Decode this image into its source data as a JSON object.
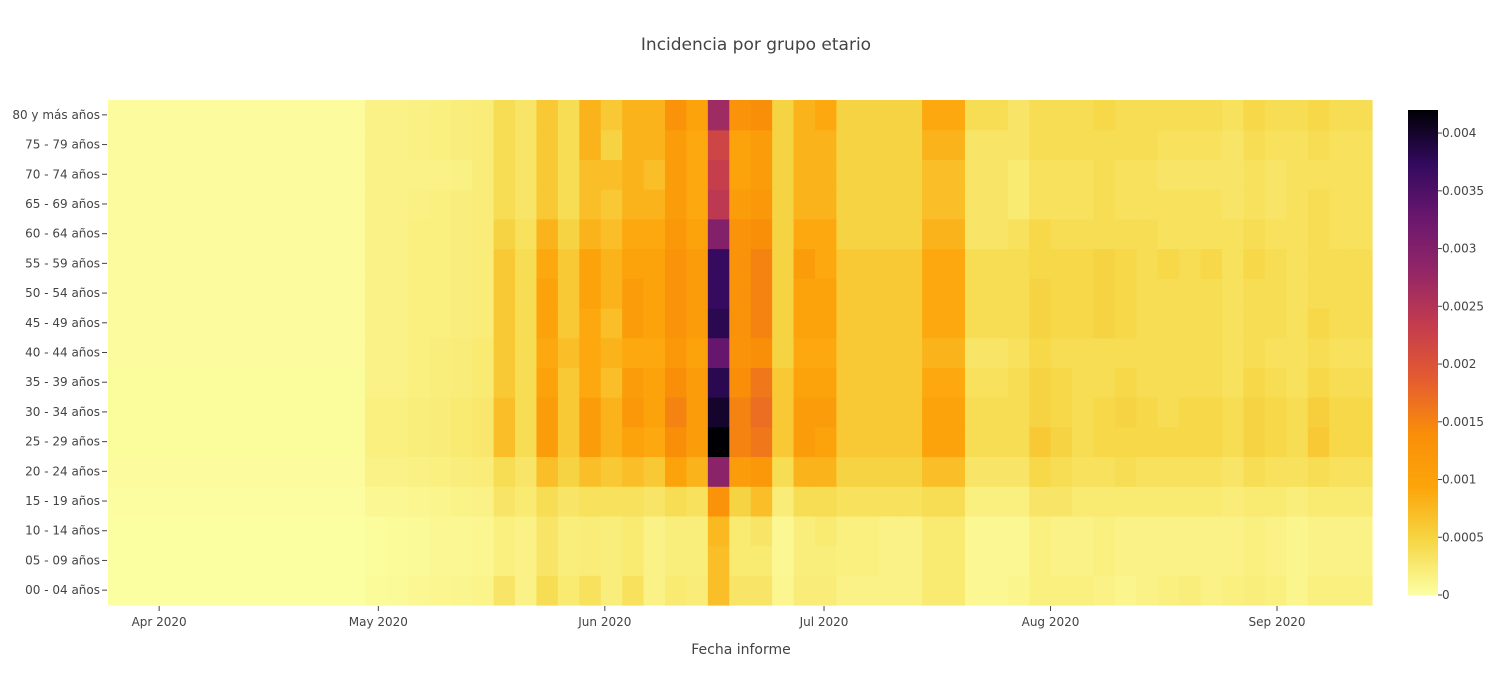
{
  "chart_data": {
    "type": "heatmap",
    "title": "Incidencia por grupo etario",
    "xlabel": "Fecha informe",
    "ylabel": "",
    "x_start": "2020-03-25",
    "x_end": "2020-09-14",
    "x_step_days": 3.5,
    "x_ticks": [
      {
        "date": "2020-04-01",
        "label": "Apr 2020"
      },
      {
        "date": "2020-05-01",
        "label": "May 2020"
      },
      {
        "date": "2020-06-01",
        "label": "Jun 2020"
      },
      {
        "date": "2020-07-01",
        "label": "Jul 2020"
      },
      {
        "date": "2020-08-01",
        "label": "Aug 2020"
      },
      {
        "date": "2020-09-01",
        "label": "Sep 2020"
      }
    ],
    "y_categories": [
      "00 - 04 años",
      "05 - 09 años",
      "10 - 14 años",
      "15 - 19 años",
      "20 - 24 años",
      "25 - 29 años",
      "30 - 34 años",
      "35 - 39 años",
      "40 - 44 años",
      "45 - 49 años",
      "50 - 54 años",
      "55 - 59 años",
      "60 - 64 años",
      "65 - 69 años",
      "70 - 74 años",
      "75 - 79 años",
      "80 y más años"
    ],
    "colorscale": "inferno-reversed",
    "zmin": 0,
    "zmax": 0.0042,
    "colorbar_ticks": [
      {
        "value": 0,
        "label": "0"
      },
      {
        "value": 0.0005,
        "label": "0.0005"
      },
      {
        "value": 0.001,
        "label": "0.001"
      },
      {
        "value": 0.0015,
        "label": "0.0015"
      },
      {
        "value": 0.002,
        "label": "0.002"
      },
      {
        "value": 0.0025,
        "label": "0.0025"
      },
      {
        "value": 0.003,
        "label": "0.003"
      },
      {
        "value": 0.0035,
        "label": "0.0035"
      },
      {
        "value": 0.004,
        "label": "0.004"
      }
    ],
    "z": [
      [
        1e-05,
        1e-05,
        1e-05,
        1e-05,
        1e-05,
        1e-05,
        1e-05,
        1e-05,
        1e-05,
        1e-05,
        1e-05,
        1e-05,
        5e-05,
        6e-05,
        8e-05,
        0.0001,
        0.00012,
        0.00013,
        0.0003,
        0.00015,
        0.0004,
        0.00025,
        0.00035,
        0.0002,
        0.00035,
        0.00015,
        0.00025,
        0.00022,
        0.0007,
        0.0003,
        0.0003,
        0.0001,
        0.00022,
        0.00022,
        0.00015,
        0.00015,
        0.00015,
        0.00015,
        0.00025,
        0.00025,
        8e-05,
        8e-05,
        0.00012,
        0.00018,
        0.00018,
        0.00018,
        0.00015,
        0.00012,
        0.00015,
        0.00018,
        0.0002,
        0.00015,
        0.00018,
        0.0002,
        0.00018,
        0.00012,
        0.00018,
        0.00018,
        0.00018
      ],
      [
        1e-05,
        1e-05,
        1e-05,
        1e-05,
        1e-05,
        1e-05,
        1e-05,
        1e-05,
        1e-05,
        1e-05,
        1e-05,
        1e-05,
        4e-05,
        5e-05,
        6e-05,
        8e-05,
        9e-05,
        0.0001,
        0.00018,
        0.00015,
        0.0003,
        0.0002,
        0.00022,
        0.0002,
        0.00025,
        0.00015,
        0.0002,
        0.0002,
        0.0007,
        0.00025,
        0.00025,
        8e-05,
        0.0002,
        0.0002,
        0.00018,
        0.00018,
        0.00015,
        0.00015,
        0.00025,
        0.00025,
        8e-05,
        8e-05,
        8e-05,
        0.00018,
        0.00015,
        0.00015,
        0.00018,
        0.00015,
        0.00015,
        0.00015,
        0.00015,
        0.00015,
        0.00015,
        0.00018,
        0.00015,
        0.00012,
        0.00015,
        0.00015,
        0.00015
      ],
      [
        1e-05,
        1e-05,
        1e-05,
        1e-05,
        1e-05,
        1e-05,
        1e-05,
        1e-05,
        1e-05,
        1e-05,
        1e-05,
        1e-05,
        4e-05,
        5e-05,
        6e-05,
        8e-05,
        9e-05,
        0.0001,
        0.00018,
        0.00015,
        0.0003,
        0.0002,
        0.00022,
        0.0002,
        0.00025,
        0.00015,
        0.0002,
        0.0002,
        0.00075,
        0.00025,
        0.0003,
        8e-05,
        0.0002,
        0.00025,
        0.00018,
        0.00018,
        0.00015,
        0.00015,
        0.00025,
        0.00025,
        8e-05,
        8e-05,
        8e-05,
        0.00018,
        0.00015,
        0.00015,
        0.00018,
        0.00015,
        0.00015,
        0.00015,
        0.00015,
        0.00015,
        0.00015,
        0.00018,
        0.00015,
        0.00012,
        0.00015,
        0.00015,
        0.00015
      ],
      [
        2e-05,
        2e-05,
        2e-05,
        2e-05,
        2e-05,
        2e-05,
        2e-05,
        2e-05,
        2e-05,
        2e-05,
        2e-05,
        2e-05,
        8e-05,
        9e-05,
        0.0001,
        0.00012,
        0.00014,
        0.00015,
        0.0003,
        0.00025,
        0.0004,
        0.0003,
        0.00035,
        0.00035,
        0.00035,
        0.0003,
        0.0004,
        0.00035,
        0.0013,
        0.0005,
        0.0007,
        0.00022,
        0.0004,
        0.0004,
        0.00035,
        0.00035,
        0.00035,
        0.00035,
        0.0004,
        0.0004,
        0.00018,
        0.00018,
        0.00018,
        0.0003,
        0.0003,
        0.00025,
        0.00025,
        0.00025,
        0.00025,
        0.00025,
        0.00025,
        0.00025,
        0.00022,
        0.00025,
        0.00025,
        0.0002,
        0.00025,
        0.00025,
        0.00025
      ],
      [
        3e-05,
        3e-05,
        3e-05,
        3e-05,
        3e-05,
        3e-05,
        3e-05,
        3e-05,
        3e-05,
        3e-05,
        3e-05,
        3e-05,
        0.00015,
        0.00015,
        0.00016,
        0.00018,
        0.0002,
        0.00022,
        0.0004,
        0.0003,
        0.0007,
        0.0005,
        0.0007,
        0.0006,
        0.0007,
        0.0006,
        0.001,
        0.0008,
        0.0029,
        0.0011,
        0.0012,
        0.0004,
        0.0008,
        0.0008,
        0.0005,
        0.0005,
        0.0005,
        0.0005,
        0.0007,
        0.0007,
        0.0003,
        0.0003,
        0.0003,
        0.00045,
        0.0004,
        0.00035,
        0.00035,
        0.0004,
        0.00035,
        0.00035,
        0.00035,
        0.00035,
        0.0003,
        0.0004,
        0.00035,
        0.00035,
        0.0004,
        0.00035,
        0.00035
      ],
      [
        4e-05,
        4e-05,
        4e-05,
        4e-05,
        4e-05,
        4e-05,
        4e-05,
        4e-05,
        4e-05,
        4e-05,
        4e-05,
        4e-05,
        0.00018,
        0.00018,
        0.0002,
        0.00022,
        0.00025,
        0.00028,
        0.0007,
        0.0004,
        0.0011,
        0.0006,
        0.0011,
        0.0008,
        0.001,
        0.0009,
        0.0014,
        0.0011,
        0.0042,
        0.0015,
        0.0016,
        0.0006,
        0.0011,
        0.001,
        0.0006,
        0.0006,
        0.0006,
        0.0006,
        0.001,
        0.001,
        0.0004,
        0.0004,
        0.0004,
        0.0006,
        0.0005,
        0.0004,
        0.00045,
        0.00045,
        0.00045,
        0.00045,
        0.00045,
        0.00045,
        0.0004,
        0.0005,
        0.00045,
        0.0004,
        0.0006,
        0.00045,
        0.00045
      ],
      [
        4e-05,
        4e-05,
        4e-05,
        4e-05,
        4e-05,
        4e-05,
        4e-05,
        4e-05,
        4e-05,
        4e-05,
        4e-05,
        4e-05,
        0.00018,
        0.00018,
        0.0002,
        0.00022,
        0.00025,
        0.00028,
        0.0007,
        0.0004,
        0.0011,
        0.0006,
        0.0011,
        0.0008,
        0.0012,
        0.001,
        0.0015,
        0.0011,
        0.004,
        0.0015,
        0.0017,
        0.0006,
        0.0011,
        0.0011,
        0.0006,
        0.0006,
        0.0006,
        0.0006,
        0.001,
        0.001,
        0.0004,
        0.0004,
        0.0004,
        0.0005,
        0.00045,
        0.0004,
        0.00045,
        0.0005,
        0.00045,
        0.0004,
        0.00045,
        0.00045,
        0.0004,
        0.0005,
        0.00045,
        0.0004,
        0.00055,
        0.00045,
        0.00045
      ],
      [
        4e-05,
        4e-05,
        4e-05,
        4e-05,
        4e-05,
        4e-05,
        4e-05,
        4e-05,
        4e-05,
        4e-05,
        4e-05,
        4e-05,
        0.00015,
        0.00015,
        0.00018,
        0.0002,
        0.00022,
        0.00025,
        0.0006,
        0.0004,
        0.001,
        0.0006,
        0.0009,
        0.0007,
        0.0011,
        0.001,
        0.0014,
        0.0011,
        0.0038,
        0.0014,
        0.0016,
        0.0006,
        0.001,
        0.001,
        0.0006,
        0.0006,
        0.0006,
        0.0006,
        0.0009,
        0.0009,
        0.00035,
        0.00035,
        0.0004,
        0.0005,
        0.00045,
        0.0004,
        0.0004,
        0.00045,
        0.0004,
        0.0004,
        0.0004,
        0.0004,
        0.00035,
        0.00045,
        0.0004,
        0.00035,
        0.00045,
        0.0004,
        0.0004
      ],
      [
        3e-05,
        3e-05,
        3e-05,
        3e-05,
        3e-05,
        3e-05,
        3e-05,
        3e-05,
        3e-05,
        3e-05,
        3e-05,
        3e-05,
        0.00015,
        0.00015,
        0.00018,
        0.0002,
        0.00022,
        0.00025,
        0.0006,
        0.0004,
        0.0009,
        0.0007,
        0.0009,
        0.0008,
        0.0009,
        0.0009,
        0.0012,
        0.001,
        0.0033,
        0.0013,
        0.0014,
        0.0005,
        0.0009,
        0.0009,
        0.0006,
        0.0006,
        0.0006,
        0.0006,
        0.0008,
        0.0008,
        0.0003,
        0.0003,
        0.00035,
        0.00045,
        0.0004,
        0.0004,
        0.0004,
        0.0004,
        0.0004,
        0.0004,
        0.0004,
        0.0004,
        0.00035,
        0.0004,
        0.00035,
        0.00035,
        0.0004,
        0.00035,
        0.00035
      ],
      [
        3e-05,
        3e-05,
        3e-05,
        3e-05,
        3e-05,
        3e-05,
        3e-05,
        3e-05,
        3e-05,
        3e-05,
        3e-05,
        3e-05,
        0.00015,
        0.00015,
        0.00018,
        0.00018,
        0.0002,
        0.00022,
        0.0006,
        0.0004,
        0.001,
        0.0006,
        0.0009,
        0.0007,
        0.0011,
        0.001,
        0.0013,
        0.0011,
        0.0038,
        0.0013,
        0.0015,
        0.0005,
        0.001,
        0.001,
        0.0006,
        0.0006,
        0.0006,
        0.0006,
        0.0009,
        0.0009,
        0.0004,
        0.0004,
        0.0004,
        0.0005,
        0.00045,
        0.00045,
        0.0005,
        0.00045,
        0.0004,
        0.0004,
        0.0004,
        0.0004,
        0.00035,
        0.0004,
        0.0004,
        0.00035,
        0.00045,
        0.0004,
        0.0004
      ],
      [
        3e-05,
        3e-05,
        3e-05,
        3e-05,
        3e-05,
        3e-05,
        3e-05,
        3e-05,
        3e-05,
        3e-05,
        3e-05,
        3e-05,
        0.00015,
        0.00015,
        0.00018,
        0.00018,
        0.0002,
        0.00022,
        0.0006,
        0.0004,
        0.001,
        0.0006,
        0.001,
        0.0008,
        0.0011,
        0.001,
        0.0013,
        0.0011,
        0.0037,
        0.0013,
        0.0015,
        0.0005,
        0.001,
        0.001,
        0.0006,
        0.0006,
        0.0006,
        0.0006,
        0.0009,
        0.0009,
        0.0004,
        0.0004,
        0.0004,
        0.0005,
        0.00045,
        0.00045,
        0.0005,
        0.00045,
        0.0004,
        0.0004,
        0.0004,
        0.0004,
        0.00035,
        0.0004,
        0.0004,
        0.00035,
        0.0004,
        0.0004,
        0.0004
      ],
      [
        3e-05,
        3e-05,
        3e-05,
        3e-05,
        3e-05,
        3e-05,
        3e-05,
        3e-05,
        3e-05,
        3e-05,
        3e-05,
        3e-05,
        0.00015,
        0.00015,
        0.00018,
        0.00018,
        0.0002,
        0.00022,
        0.0006,
        0.0004,
        0.0009,
        0.0006,
        0.001,
        0.0008,
        0.001,
        0.001,
        0.0013,
        0.0011,
        0.0037,
        0.0013,
        0.0015,
        0.0005,
        0.0011,
        0.0009,
        0.0006,
        0.0006,
        0.0006,
        0.0006,
        0.0009,
        0.0009,
        0.0004,
        0.0004,
        0.0004,
        0.00045,
        0.00045,
        0.00045,
        0.0005,
        0.00045,
        0.0004,
        0.00045,
        0.0004,
        0.00045,
        0.00035,
        0.00045,
        0.0004,
        0.00035,
        0.0004,
        0.0004,
        0.0004
      ],
      [
        3e-05,
        3e-05,
        3e-05,
        3e-05,
        3e-05,
        3e-05,
        3e-05,
        3e-05,
        3e-05,
        3e-05,
        3e-05,
        3e-05,
        0.00015,
        0.00015,
        0.00018,
        0.00018,
        0.0002,
        0.00022,
        0.0005,
        0.00035,
        0.0008,
        0.0005,
        0.0008,
        0.0007,
        0.0009,
        0.0009,
        0.0012,
        0.001,
        0.003,
        0.0013,
        0.0014,
        0.0005,
        0.0009,
        0.0009,
        0.0005,
        0.0005,
        0.0005,
        0.0005,
        0.0008,
        0.0008,
        0.0003,
        0.0003,
        0.00035,
        0.00045,
        0.0004,
        0.0004,
        0.0004,
        0.0004,
        0.0004,
        0.00035,
        0.00035,
        0.00035,
        0.00035,
        0.0004,
        0.00035,
        0.00035,
        0.0004,
        0.00035,
        0.00035
      ],
      [
        3e-05,
        3e-05,
        3e-05,
        3e-05,
        3e-05,
        3e-05,
        3e-05,
        3e-05,
        3e-05,
        3e-05,
        3e-05,
        3e-05,
        0.00015,
        0.00015,
        0.00016,
        0.00018,
        0.0002,
        0.00022,
        0.0004,
        0.0003,
        0.0006,
        0.0004,
        0.0007,
        0.0006,
        0.0008,
        0.0008,
        0.0011,
        0.0009,
        0.0024,
        0.0011,
        0.0012,
        0.0005,
        0.0008,
        0.0008,
        0.0005,
        0.0005,
        0.0005,
        0.0005,
        0.0007,
        0.0007,
        0.0003,
        0.0003,
        0.00025,
        0.00035,
        0.00035,
        0.00035,
        0.0004,
        0.00035,
        0.00035,
        0.00035,
        0.00035,
        0.00035,
        0.0003,
        0.00035,
        0.0003,
        0.00035,
        0.0004,
        0.00035,
        0.00035
      ],
      [
        3e-05,
        3e-05,
        3e-05,
        3e-05,
        3e-05,
        3e-05,
        3e-05,
        3e-05,
        3e-05,
        3e-05,
        3e-05,
        3e-05,
        0.00015,
        0.00015,
        0.00015,
        0.00015,
        0.00016,
        0.00022,
        0.0004,
        0.0003,
        0.0006,
        0.0004,
        0.0007,
        0.0007,
        0.0008,
        0.0007,
        0.0011,
        0.0009,
        0.0023,
        0.001,
        0.0011,
        0.0005,
        0.0008,
        0.0008,
        0.0005,
        0.0005,
        0.0005,
        0.0005,
        0.0007,
        0.0007,
        0.0003,
        0.0003,
        0.00025,
        0.00035,
        0.00035,
        0.00035,
        0.0004,
        0.00035,
        0.00035,
        0.0003,
        0.0003,
        0.0003,
        0.0003,
        0.00035,
        0.0003,
        0.00035,
        0.00035,
        0.00035,
        0.00035
      ],
      [
        3e-05,
        3e-05,
        3e-05,
        3e-05,
        3e-05,
        3e-05,
        3e-05,
        3e-05,
        3e-05,
        3e-05,
        3e-05,
        3e-05,
        0.00015,
        0.00015,
        0.00016,
        0.00018,
        0.0002,
        0.00022,
        0.0004,
        0.0003,
        0.0006,
        0.0004,
        0.0008,
        0.0005,
        0.0008,
        0.0008,
        0.0011,
        0.0009,
        0.0022,
        0.001,
        0.0011,
        0.0005,
        0.0008,
        0.0008,
        0.0005,
        0.0005,
        0.0005,
        0.0005,
        0.0008,
        0.0008,
        0.0003,
        0.0003,
        0.0003,
        0.0004,
        0.0004,
        0.0004,
        0.0004,
        0.0004,
        0.0004,
        0.00035,
        0.00035,
        0.00035,
        0.0003,
        0.0004,
        0.00035,
        0.00035,
        0.0004,
        0.00035,
        0.00035
      ],
      [
        3e-05,
        3e-05,
        3e-05,
        3e-05,
        3e-05,
        3e-05,
        3e-05,
        3e-05,
        3e-05,
        3e-05,
        3e-05,
        3e-05,
        0.00015,
        0.00015,
        0.00016,
        0.00018,
        0.0002,
        0.00022,
        0.0004,
        0.0003,
        0.0006,
        0.0004,
        0.0008,
        0.0006,
        0.0008,
        0.0008,
        0.0013,
        0.001,
        0.0027,
        0.0013,
        0.0014,
        0.0005,
        0.0008,
        0.0009,
        0.0005,
        0.0005,
        0.0005,
        0.0005,
        0.0009,
        0.0009,
        0.0004,
        0.0004,
        0.0003,
        0.0004,
        0.0004,
        0.0004,
        0.00045,
        0.0004,
        0.0004,
        0.0004,
        0.0004,
        0.0004,
        0.00035,
        0.00045,
        0.0004,
        0.0004,
        0.00045,
        0.0004,
        0.0004
      ]
    ]
  }
}
